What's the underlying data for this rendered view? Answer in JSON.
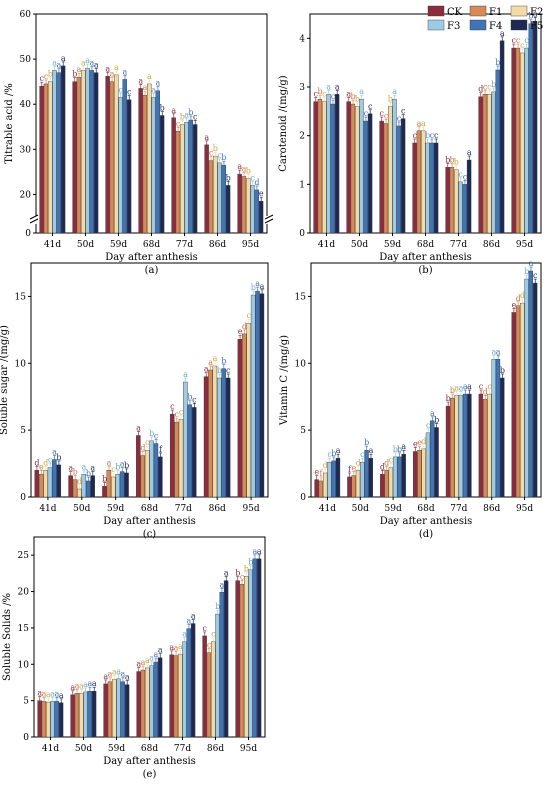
{
  "legend": {
    "items": [
      {
        "name": "CK",
        "color": "#8b2d3f"
      },
      {
        "name": "F1",
        "color": "#d8895a"
      },
      {
        "name": "F2",
        "color": "#f3dba6"
      },
      {
        "name": "F3",
        "color": "#9dcbe6"
      },
      {
        "name": "F4",
        "color": "#3f74b5"
      },
      {
        "name": "F5",
        "color": "#1e2a55"
      }
    ]
  },
  "chart_data": [
    {
      "type": "bar",
      "caption": "(a)",
      "categories": [
        "41d",
        "50d",
        "59d",
        "68d",
        "77d",
        "86d",
        "95d"
      ],
      "xlabel": "Day after anthesis",
      "ylabel": "Titrable acid /%",
      "ylim": [
        0,
        60
      ],
      "axis_break": [
        5,
        15
      ],
      "yticks": [
        "0",
        "20",
        "30",
        "40",
        "50",
        "60"
      ],
      "ytick_values": [
        0,
        20,
        30,
        40,
        50,
        60
      ],
      "series": [
        {
          "name": "CK",
          "values": [
            44.0,
            45.0,
            46.2,
            43.5,
            37.0,
            31.0,
            24.5
          ],
          "labels": [
            "c",
            "b",
            "a",
            "a",
            "a",
            "a",
            "a"
          ]
        },
        {
          "name": "F1",
          "values": [
            44.5,
            46.0,
            45.0,
            42.0,
            34.0,
            27.5,
            24.0
          ],
          "labels": [
            "c",
            "a",
            "a",
            "a",
            "c",
            "c",
            "a"
          ]
        },
        {
          "name": "F2",
          "values": [
            45.0,
            47.5,
            46.5,
            44.5,
            35.5,
            28.5,
            23.5
          ],
          "labels": [
            "b",
            "a",
            "a",
            "a",
            "b",
            "b",
            "b"
          ]
        },
        {
          "name": "F3",
          "values": [
            47.5,
            48.0,
            41.5,
            41.5,
            36.0,
            27.0,
            22.0
          ],
          "labels": [
            "a",
            "a",
            "c",
            "a",
            "a",
            "c",
            "c"
          ]
        },
        {
          "name": "F4",
          "values": [
            47.0,
            47.5,
            45.5,
            43.0,
            36.5,
            26.5,
            21.0
          ],
          "labels": [
            "a",
            "a",
            "a",
            "a",
            "b",
            "b",
            "d"
          ]
        },
        {
          "name": "F5",
          "values": [
            48.5,
            47.0,
            41.0,
            37.5,
            35.5,
            22.0,
            18.5
          ],
          "labels": [
            "a",
            "a",
            "c",
            "b",
            "c",
            "b",
            "e"
          ]
        }
      ]
    },
    {
      "type": "bar",
      "caption": "(b)",
      "categories": [
        "41d",
        "50d",
        "59d",
        "68d",
        "77d",
        "86d",
        "95d"
      ],
      "xlabel": "Day after anthesis",
      "ylabel": "Carotenoid /(mg/g)",
      "ylim": [
        0,
        4.5
      ],
      "yticks": [
        "0",
        "1",
        "2",
        "3",
        "4"
      ],
      "ytick_values": [
        0,
        1,
        2,
        3,
        4
      ],
      "series": [
        {
          "name": "CK",
          "values": [
            2.7,
            2.7,
            2.3,
            1.85,
            1.35,
            2.8,
            3.8
          ],
          "labels": [
            "c",
            "a",
            "c",
            "c",
            "b",
            "d",
            "c"
          ]
        },
        {
          "name": "F1",
          "values": [
            2.75,
            2.65,
            2.25,
            2.1,
            1.35,
            2.85,
            3.8
          ],
          "labels": [
            "b",
            "b",
            "c",
            "a",
            "b",
            "c",
            "c"
          ]
        },
        {
          "name": "F2",
          "values": [
            2.7,
            2.6,
            2.6,
            2.1,
            1.3,
            2.85,
            3.7
          ],
          "labels": [
            "c",
            "b",
            "b",
            "a",
            "b",
            "c",
            "c"
          ]
        },
        {
          "name": "F3",
          "values": [
            2.85,
            2.75,
            2.75,
            1.85,
            1.05,
            2.9,
            3.8
          ],
          "labels": [
            "a",
            "a",
            "a",
            "b",
            "c",
            "b",
            "c"
          ]
        },
        {
          "name": "F4",
          "values": [
            2.65,
            2.3,
            2.2,
            1.85,
            1.0,
            3.35,
            4.3
          ],
          "labels": [
            "c",
            "c",
            "c",
            "c",
            "c",
            "b",
            "b"
          ]
        },
        {
          "name": "F5",
          "values": [
            2.85,
            2.45,
            2.35,
            1.85,
            1.5,
            3.95,
            4.35
          ],
          "labels": [
            "a",
            "c",
            "c",
            "c",
            "a",
            "a",
            "a"
          ]
        }
      ]
    },
    {
      "type": "bar",
      "caption": "(c)",
      "categories": [
        "41d",
        "50d",
        "59d",
        "68d",
        "77d",
        "86d",
        "95d"
      ],
      "xlabel": "Day after anthesis",
      "ylabel": "Soluble sugar /(mg/g)",
      "ylim": [
        0,
        17.5
      ],
      "yticks": [
        "0",
        "5",
        "10",
        "15"
      ],
      "ytick_values": [
        0,
        5,
        10,
        15
      ],
      "series": [
        {
          "name": "CK",
          "values": [
            2.0,
            1.6,
            0.8,
            4.6,
            6.2,
            9.0,
            11.8
          ],
          "labels": [
            "d",
            "a",
            "b",
            "a",
            "c",
            "a",
            "e"
          ]
        },
        {
          "name": "F1",
          "values": [
            1.7,
            1.3,
            2.0,
            3.1,
            5.6,
            9.5,
            12.2
          ],
          "labels": [
            "e",
            "b",
            "a",
            "d",
            "c",
            "a",
            "d"
          ]
        },
        {
          "name": "F2",
          "values": [
            2.0,
            0.6,
            1.5,
            3.5,
            5.8,
            9.8,
            13.0
          ],
          "labels": [
            "d",
            "d",
            "c",
            "c",
            "c",
            "a",
            "c"
          ]
        },
        {
          "name": "F3",
          "values": [
            2.2,
            1.7,
            1.7,
            4.2,
            8.6,
            8.9,
            15.1
          ],
          "labels": [
            "c",
            "a",
            "b",
            "b",
            "a",
            "b",
            "b"
          ]
        },
        {
          "name": "F4",
          "values": [
            2.8,
            1.2,
            1.9,
            4.0,
            6.9,
            9.6,
            15.4
          ],
          "labels": [
            "a",
            "b",
            "a",
            "c",
            "b",
            "b",
            "a"
          ]
        },
        {
          "name": "F5",
          "values": [
            2.4,
            1.6,
            1.8,
            3.0,
            6.7,
            8.9,
            15.2
          ],
          "labels": [
            "b",
            "a",
            "b",
            "f",
            "c",
            "c",
            "a"
          ]
        }
      ]
    },
    {
      "type": "bar",
      "caption": "(d)",
      "categories": [
        "41d",
        "50d",
        "59d",
        "68d",
        "77d",
        "86d",
        "95d"
      ],
      "xlabel": "Day after anthesis",
      "ylabel": "Vitamin C /(mg/g)",
      "ylim": [
        0,
        17.5
      ],
      "yticks": [
        "0",
        "5",
        "10",
        "15"
      ],
      "ytick_values": [
        0,
        5,
        10,
        15
      ],
      "series": [
        {
          "name": "CK",
          "values": [
            1.3,
            1.5,
            1.7,
            3.4,
            6.8,
            7.7,
            13.8
          ],
          "labels": [
            "e",
            "f",
            "d",
            "e",
            "b",
            "c",
            "e"
          ]
        },
        {
          "name": "F1",
          "values": [
            1.2,
            1.6,
            2.0,
            3.5,
            7.4,
            7.3,
            14.3
          ],
          "labels": [
            "f",
            "e",
            "d",
            "e",
            "b",
            "d",
            "d"
          ]
        },
        {
          "name": "F2",
          "values": [
            1.8,
            2.0,
            2.2,
            3.6,
            7.6,
            7.7,
            14.5
          ],
          "labels": [
            "d",
            "d",
            "c",
            "d",
            "a",
            "c",
            "d"
          ]
        },
        {
          "name": "F3",
          "values": [
            2.6,
            2.6,
            3.0,
            4.8,
            7.6,
            10.3,
            16.3
          ],
          "labels": [
            "c",
            "c",
            "b",
            "c",
            "a",
            "a",
            "b"
          ]
        },
        {
          "name": "F4",
          "values": [
            2.7,
            3.5,
            3.0,
            5.7,
            7.7,
            10.3,
            16.9
          ],
          "labels": [
            "b",
            "b",
            "b",
            "a",
            "a",
            "a",
            "a"
          ]
        },
        {
          "name": "F5",
          "values": [
            2.9,
            2.9,
            3.2,
            5.2,
            7.7,
            8.9,
            16.0
          ],
          "labels": [
            "a",
            "a",
            "a",
            "b",
            "a",
            "b",
            "c"
          ]
        }
      ]
    },
    {
      "type": "bar",
      "caption": "(e)",
      "categories": [
        "41d",
        "50d",
        "59d",
        "68d",
        "77d",
        "86d",
        "95d"
      ],
      "xlabel": "Day after anthesis",
      "ylabel": "Soluble Solids /%",
      "ylim": [
        0,
        27.5
      ],
      "yticks": [
        "0",
        "5",
        "10",
        "15",
        "20",
        "25"
      ],
      "ytick_values": [
        0,
        5,
        10,
        15,
        20,
        25
      ],
      "series": [
        {
          "name": "CK",
          "values": [
            5.0,
            5.8,
            7.3,
            9.0,
            11.3,
            13.9,
            21.5
          ],
          "labels": [
            "a",
            "a",
            "a",
            "a",
            "a",
            "c",
            "b"
          ]
        },
        {
          "name": "F1",
          "values": [
            4.9,
            6.0,
            7.6,
            9.2,
            11.2,
            11.6,
            21.0
          ],
          "labels": [
            "a",
            "a",
            "a",
            "a",
            "a",
            "c",
            "c"
          ]
        },
        {
          "name": "F2",
          "values": [
            4.8,
            6.0,
            7.9,
            9.5,
            11.4,
            13.1,
            22.1
          ],
          "labels": [
            "a",
            "a",
            "a",
            "a",
            "a",
            "c",
            "b"
          ]
        },
        {
          "name": "F3",
          "values": [
            4.9,
            6.2,
            8.0,
            9.8,
            13.1,
            16.9,
            23.0
          ],
          "labels": [
            "a",
            "a",
            "a",
            "a",
            "a",
            "b",
            "b"
          ]
        },
        {
          "name": "F4",
          "values": [
            4.9,
            6.3,
            7.6,
            10.3,
            14.9,
            19.9,
            24.5
          ],
          "labels": [
            "a",
            "a",
            "a",
            "a",
            "a",
            "a",
            "a"
          ]
        },
        {
          "name": "F5",
          "values": [
            4.7,
            6.3,
            7.2,
            10.9,
            15.6,
            21.5,
            24.5
          ],
          "labels": [
            "a",
            "a",
            "a",
            "a",
            "a",
            "a",
            "a"
          ]
        }
      ]
    }
  ]
}
